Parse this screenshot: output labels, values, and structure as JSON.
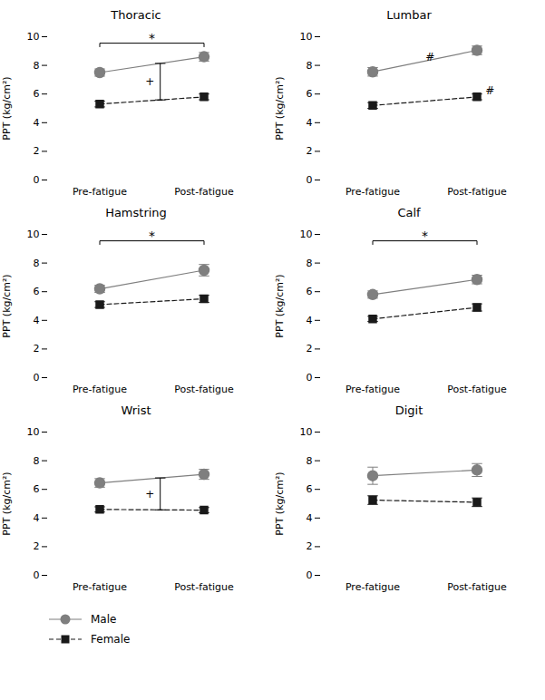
{
  "chart_data": [
    {
      "type": "line",
      "title": "Thoracic",
      "categories": [
        "Pre-fatigue",
        "Post-fatigue"
      ],
      "series": [
        {
          "name": "Male",
          "color": "#7f7f7f",
          "marker": "circle",
          "line_style": "solid",
          "values": [
            7.5,
            8.6
          ],
          "errors": [
            0.25,
            0.3
          ]
        },
        {
          "name": "Female",
          "color": "#1a1a1a",
          "marker": "square",
          "line_style": "dashed",
          "values": [
            5.3,
            5.8
          ],
          "errors": [
            0.2,
            0.2
          ]
        }
      ],
      "ylabel": "PPT (kg/cm²)",
      "ylim": [
        0,
        10
      ],
      "yticks": [
        0,
        2,
        4,
        6,
        8,
        10
      ],
      "annotations": [
        "*",
        "+"
      ],
      "legend": "lower left"
    },
    {
      "type": "line",
      "title": "Lumbar",
      "categories": [
        "Pre-fatigue",
        "Post-fatigue"
      ],
      "series": [
        {
          "name": "Male",
          "color": "#7f7f7f",
          "marker": "circle",
          "line_style": "solid",
          "values": [
            7.55,
            9.05
          ],
          "errors": [
            0.3,
            0.3
          ]
        },
        {
          "name": "Female",
          "color": "#1a1a1a",
          "marker": "square",
          "line_style": "dashed",
          "values": [
            5.2,
            5.8
          ],
          "errors": [
            0.2,
            0.2
          ]
        }
      ],
      "ylabel": "PPT (kg/cm²)",
      "ylim": [
        0,
        10
      ],
      "yticks": [
        0,
        2,
        4,
        6,
        8,
        10
      ],
      "annotations": [
        "#",
        "#"
      ],
      "legend": "lower left"
    },
    {
      "type": "line",
      "title": "Hamstring",
      "categories": [
        "Pre-fatigue",
        "Post-fatigue"
      ],
      "series": [
        {
          "name": "Male",
          "color": "#7f7f7f",
          "marker": "circle",
          "line_style": "solid",
          "values": [
            6.2,
            7.5
          ],
          "errors": [
            0.25,
            0.4
          ]
        },
        {
          "name": "Female",
          "color": "#1a1a1a",
          "marker": "square",
          "line_style": "dashed",
          "values": [
            5.1,
            5.5
          ],
          "errors": [
            0.2,
            0.25
          ]
        }
      ],
      "ylabel": "PPT (kg/cm²)",
      "ylim": [
        0,
        10
      ],
      "yticks": [
        0,
        2,
        4,
        6,
        8,
        10
      ],
      "annotations": [
        "*"
      ],
      "legend": "lower left"
    },
    {
      "type": "line",
      "title": "Calf",
      "categories": [
        "Pre-fatigue",
        "Post-fatigue"
      ],
      "series": [
        {
          "name": "Male",
          "color": "#7f7f7f",
          "marker": "circle",
          "line_style": "solid",
          "values": [
            5.8,
            6.85
          ],
          "errors": [
            0.25,
            0.3
          ]
        },
        {
          "name": "Female",
          "color": "#1a1a1a",
          "marker": "square",
          "line_style": "dashed",
          "values": [
            4.1,
            4.9
          ],
          "errors": [
            0.18,
            0.25
          ]
        }
      ],
      "ylabel": "PPT (kg/cm²)",
      "ylim": [
        0,
        10
      ],
      "yticks": [
        0,
        2,
        4,
        6,
        8,
        10
      ],
      "annotations": [
        "*"
      ],
      "legend": "lower left"
    },
    {
      "type": "line",
      "title": "Wrist",
      "categories": [
        "Pre-fatigue",
        "Post-fatigue"
      ],
      "series": [
        {
          "name": "Male",
          "color": "#7f7f7f",
          "marker": "circle",
          "line_style": "solid",
          "values": [
            6.45,
            7.05
          ],
          "errors": [
            0.3,
            0.35
          ]
        },
        {
          "name": "Female",
          "color": "#1a1a1a",
          "marker": "square",
          "line_style": "dashed",
          "values": [
            4.6,
            4.55
          ],
          "errors": [
            0.18,
            0.18
          ]
        }
      ],
      "ylabel": "PPT (kg/cm²)",
      "ylim": [
        0,
        10
      ],
      "yticks": [
        0,
        2,
        4,
        6,
        8,
        10
      ],
      "annotations": [
        "+"
      ],
      "legend": "lower left"
    },
    {
      "type": "line",
      "title": "Digit",
      "categories": [
        "Pre-fatigue",
        "Post-fatigue"
      ],
      "series": [
        {
          "name": "Male",
          "color": "#7f7f7f",
          "marker": "circle",
          "line_style": "solid",
          "values": [
            6.95,
            7.35
          ],
          "errors": [
            0.6,
            0.45
          ]
        },
        {
          "name": "Female",
          "color": "#1a1a1a",
          "marker": "square",
          "line_style": "dashed",
          "values": [
            5.25,
            5.1
          ],
          "errors": [
            0.3,
            0.3
          ]
        }
      ],
      "ylabel": "PPT (kg/cm²)",
      "ylim": [
        0,
        10
      ],
      "yticks": [
        0,
        2,
        4,
        6,
        8,
        10
      ],
      "legend": "lower left"
    }
  ]
}
